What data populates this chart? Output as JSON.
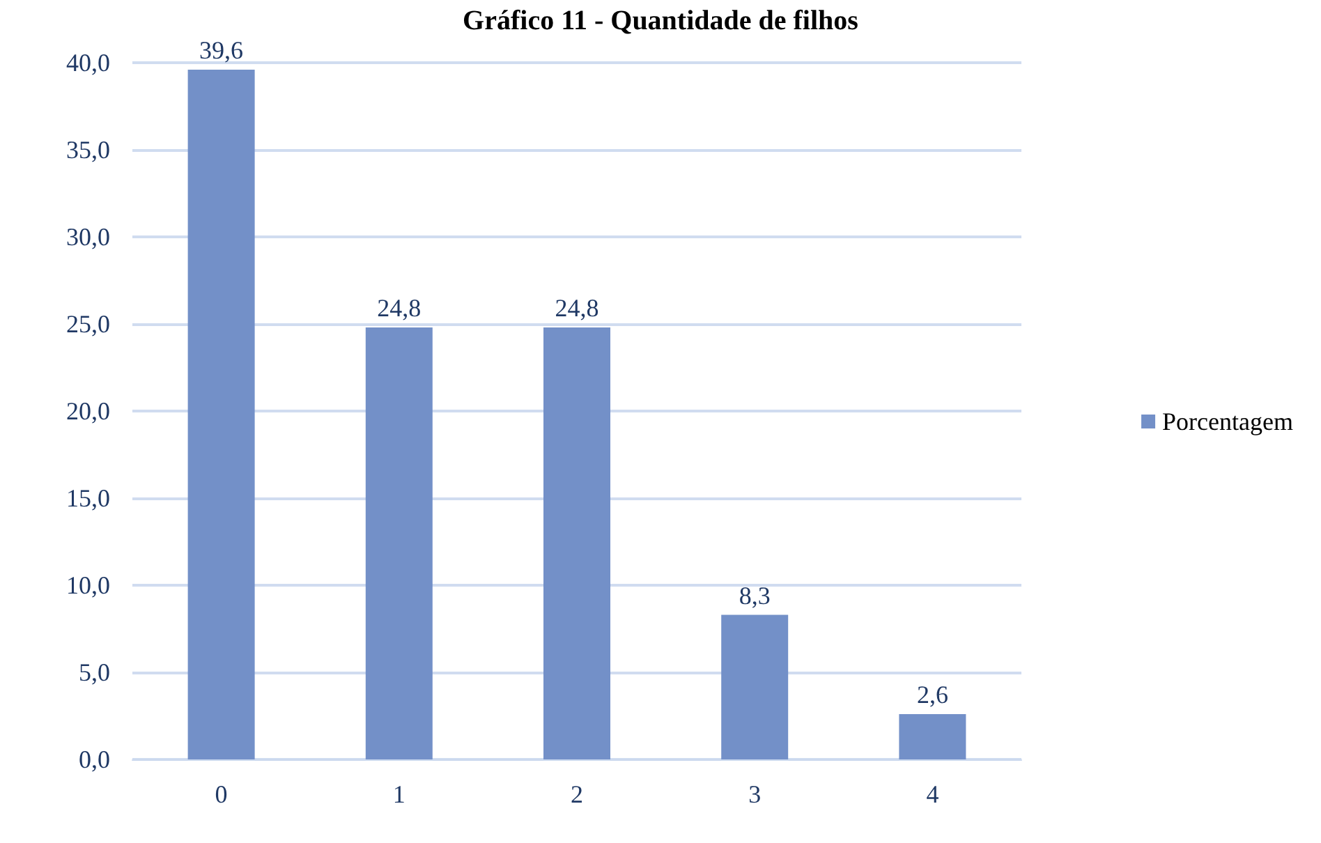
{
  "chart_data": {
    "type": "bar",
    "title": "Gráfico 11 - Quantidade de filhos",
    "categories": [
      "0",
      "1",
      "2",
      "3",
      "4"
    ],
    "series": [
      {
        "name": "Porcentagem",
        "color": "#7390c8",
        "values": [
          39.6,
          24.8,
          24.8,
          8.3,
          2.6
        ],
        "value_labels": [
          "39,6",
          "24,8",
          "24,8",
          "8,3",
          "2,6"
        ]
      }
    ],
    "ylim": [
      0,
      40
    ],
    "yticks": [
      {
        "value": 0,
        "label": "0,0"
      },
      {
        "value": 5,
        "label": "5,0"
      },
      {
        "value": 10,
        "label": "10,0"
      },
      {
        "value": 15,
        "label": "15,0"
      },
      {
        "value": 20,
        "label": "20,0"
      },
      {
        "value": 25,
        "label": "25,0"
      },
      {
        "value": 30,
        "label": "30,0"
      },
      {
        "value": 35,
        "label": "35,0"
      },
      {
        "value": 40,
        "label": "40,0"
      }
    ],
    "grid": "y",
    "legend": "right"
  }
}
